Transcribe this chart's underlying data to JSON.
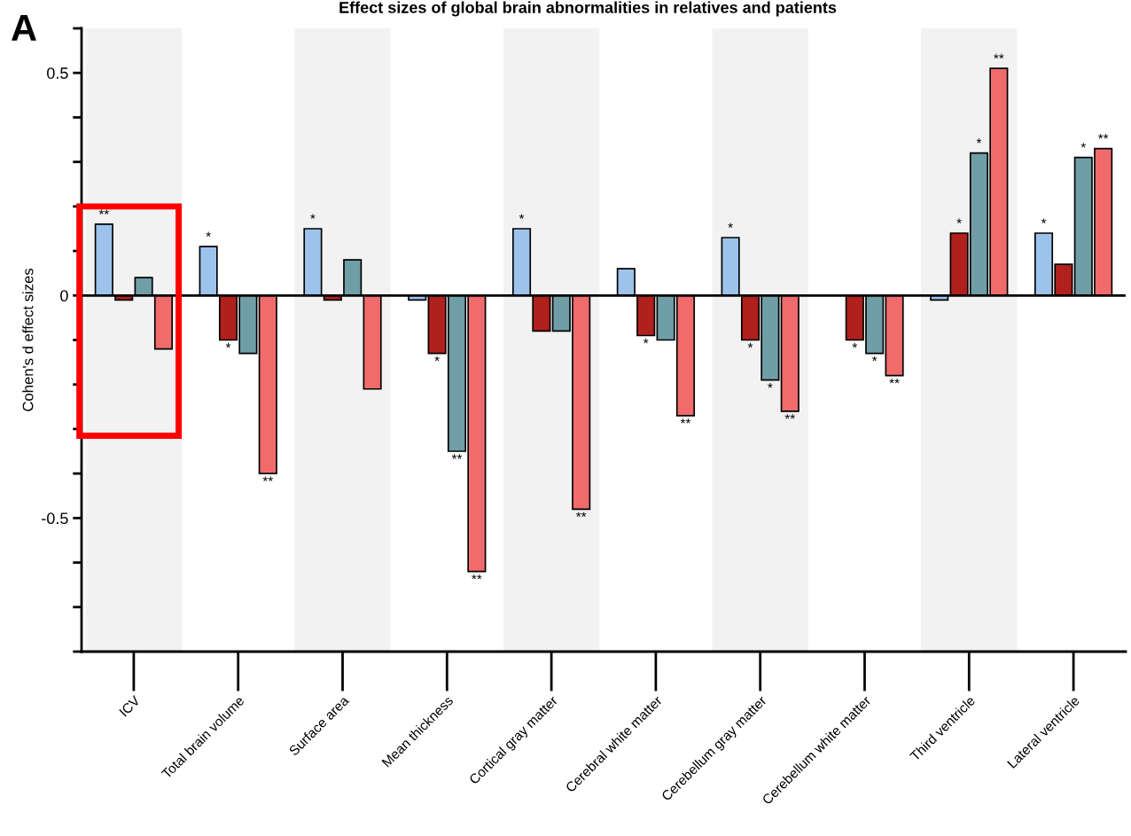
{
  "chart_data": {
    "type": "bar",
    "title": "Effect sizes of global brain abnormalities in relatives and patients",
    "ylabel": "Cohen's d effect sizes",
    "annotations": [
      "A"
    ],
    "categories": [
      "ICV",
      "Total brain volume",
      "Surface area",
      "Mean thickness",
      "Cortical gray matter",
      "Cerebral white matter",
      "Cerebellum gray matter",
      "Cerebellum white matter",
      "Third ventricle",
      "Lateral ventricle"
    ],
    "series": [
      {
        "color": "#9dc3ec",
        "values": [
          0.16,
          0.11,
          0.15,
          -0.01,
          0.15,
          0.06,
          0.13,
          null,
          -0.01,
          0.14
        ],
        "value_labels": [
          "**",
          "*",
          "*",
          null,
          "*",
          null,
          "*",
          null,
          null,
          "*"
        ]
      },
      {
        "color": "#b0201c",
        "values": [
          -0.01,
          -0.1,
          -0.01,
          -0.13,
          -0.08,
          -0.09,
          -0.1,
          -0.1,
          0.14,
          0.07
        ],
        "value_labels": [
          null,
          "*",
          null,
          "*",
          null,
          "*",
          "*",
          "*",
          "*",
          null
        ]
      },
      {
        "color": "#6f9ea6",
        "values": [
          0.04,
          -0.13,
          0.08,
          -0.35,
          -0.08,
          -0.1,
          -0.19,
          -0.13,
          0.32,
          0.31
        ],
        "value_labels": [
          null,
          null,
          null,
          "**",
          null,
          null,
          "*",
          "*",
          "*",
          "*"
        ]
      },
      {
        "color": "#f06b6b",
        "values": [
          -0.12,
          -0.4,
          -0.21,
          -0.62,
          -0.48,
          -0.27,
          -0.26,
          -0.18,
          0.51,
          0.33
        ],
        "value_labels": [
          null,
          "**",
          null,
          "**",
          "**",
          "**",
          "**",
          "**",
          "**",
          "**"
        ]
      }
    ],
    "bands": [
      {
        "axis": "x",
        "from": "ICV",
        "to": "ICV",
        "color": "#f2f2f2"
      },
      {
        "axis": "x",
        "from": "Surface area",
        "to": "Surface area",
        "color": "#f2f2f2"
      },
      {
        "axis": "x",
        "from": "Cortical gray matter",
        "to": "Cortical gray matter",
        "color": "#f2f2f2"
      },
      {
        "axis": "x",
        "from": "Cerebellum gray matter",
        "to": "Cerebellum gray matter",
        "color": "#f2f2f2"
      },
      {
        "axis": "x",
        "from": "Third ventricle",
        "to": "Third ventricle",
        "color": "#f2f2f2"
      }
    ],
    "ylim": [
      -0.8,
      0.6
    ],
    "yticks": [
      {
        "value": 0.6,
        "label": null
      },
      {
        "value": 0.5,
        "label": "0.5"
      },
      {
        "value": 0.4,
        "label": null
      },
      {
        "value": 0.3,
        "label": null
      },
      {
        "value": 0.2,
        "label": null
      },
      {
        "value": 0.1,
        "label": null
      },
      {
        "value": 0,
        "label": "0"
      },
      {
        "value": -0.1,
        "label": null
      },
      {
        "value": -0.2,
        "label": null
      },
      {
        "value": -0.3,
        "label": null
      },
      {
        "value": -0.4,
        "label": null
      },
      {
        "value": -0.5,
        "label": "-0.5"
      },
      {
        "value": -0.6,
        "label": null
      },
      {
        "value": -0.7,
        "label": null
      },
      {
        "value": -0.8,
        "label": null
      }
    ],
    "ref_lines": [
      {
        "axis": "y",
        "value": 0,
        "color": "#000000"
      }
    ]
  }
}
